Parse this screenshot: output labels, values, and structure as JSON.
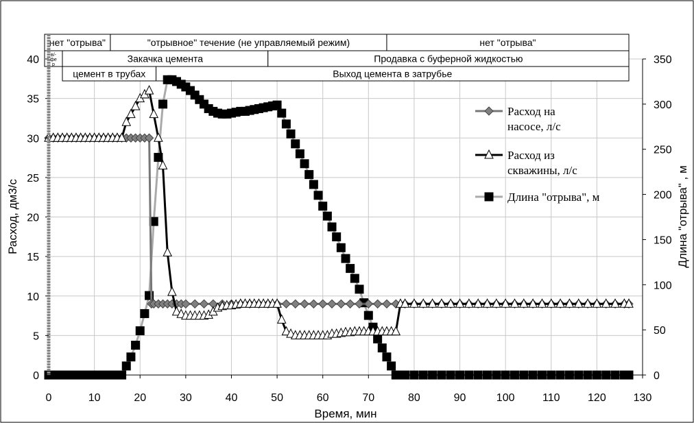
{
  "chart_data": {
    "type": "line",
    "title": "",
    "xlabel": "Время, мин",
    "ylabel_left": "Расход, дм3/с",
    "ylabel_right": "Длина \"отрыва\" , м",
    "xlim": [
      0,
      130
    ],
    "ylim_left": [
      0,
      40
    ],
    "ylim_right": [
      0,
      350
    ],
    "x_ticks": [
      "0",
      "10",
      "20",
      "30",
      "40",
      "50",
      "60",
      "70",
      "80",
      "90",
      "100",
      "110",
      "120",
      "130"
    ],
    "y_left_ticks": [
      "0",
      "5",
      "10",
      "15",
      "20",
      "25",
      "30",
      "35",
      "40"
    ],
    "y_right_ticks": [
      "0",
      "50",
      "100",
      "150",
      "200",
      "250",
      "300",
      "350"
    ],
    "grid": true,
    "legend_position": "right",
    "phase_rows": [
      {
        "segments": [
          {
            "label": "нет \"отрыва\"",
            "x_start": 0,
            "x_end": 13.5
          },
          {
            "label": "\"отрывное\" течение (не управляемый режим)",
            "x_start": 13.5,
            "x_end": 74
          },
          {
            "label": "нет \"отрыва\"",
            "x_start": 74,
            "x_end": 127
          }
        ]
      },
      {
        "segments": [
          {
            "label": "в/-\nфе\nр",
            "x_start": 0,
            "x_end": 3
          },
          {
            "label": "Закачка цемента",
            "x_start": 3,
            "x_end": 48
          },
          {
            "label": "Продавка с буферной жидкостью",
            "x_start": 48,
            "x_end": 127
          }
        ]
      },
      {
        "segments": [
          {
            "label": "цемент в трубах",
            "x_start": 3,
            "x_end": 23.5
          },
          {
            "label": "Выход цемента в затрубье",
            "x_start": 23.5,
            "x_end": 127
          }
        ]
      }
    ],
    "series": [
      {
        "name": "Расход на насосе, л/с",
        "legend_lines": [
          "Расход на",
          "насосе, л/с"
        ],
        "axis": "left",
        "marker": "diamond",
        "color": "#777777",
        "marker_fill": "#808080",
        "points": [
          [
            0,
            30
          ],
          [
            1,
            30
          ],
          [
            2,
            30
          ],
          [
            3,
            30
          ],
          [
            4,
            30
          ],
          [
            5,
            30
          ],
          [
            6,
            30
          ],
          [
            7,
            30
          ],
          [
            8,
            30
          ],
          [
            9,
            30
          ],
          [
            10,
            30
          ],
          [
            11,
            30
          ],
          [
            12,
            30
          ],
          [
            13,
            30
          ],
          [
            14,
            30
          ],
          [
            15,
            30
          ],
          [
            16,
            30
          ],
          [
            17,
            30
          ],
          [
            18,
            30
          ],
          [
            19,
            30
          ],
          [
            20,
            30
          ],
          [
            21,
            30
          ],
          [
            22,
            30
          ],
          [
            22.5,
            9
          ],
          [
            23,
            9
          ],
          [
            24,
            9
          ],
          [
            25,
            9
          ],
          [
            26,
            9
          ],
          [
            27,
            9
          ],
          [
            28,
            9
          ],
          [
            29,
            9
          ],
          [
            30,
            9
          ],
          [
            32,
            9
          ],
          [
            34,
            9
          ],
          [
            36,
            9
          ],
          [
            38,
            9
          ],
          [
            40,
            9
          ],
          [
            42,
            9
          ],
          [
            44,
            9
          ],
          [
            46,
            9
          ],
          [
            48,
            9
          ],
          [
            50,
            9
          ],
          [
            52,
            9
          ],
          [
            54,
            9
          ],
          [
            56,
            9
          ],
          [
            58,
            9
          ],
          [
            60,
            9
          ],
          [
            62,
            9
          ],
          [
            64,
            9
          ],
          [
            66,
            9
          ],
          [
            68,
            9
          ],
          [
            70,
            9
          ],
          [
            72,
            9
          ],
          [
            74,
            9
          ],
          [
            76,
            9
          ],
          [
            78,
            9
          ],
          [
            80,
            9
          ],
          [
            82,
            9
          ],
          [
            84,
            9
          ],
          [
            86,
            9
          ],
          [
            88,
            9
          ],
          [
            90,
            9
          ],
          [
            92,
            9
          ],
          [
            94,
            9
          ],
          [
            96,
            9
          ],
          [
            98,
            9
          ],
          [
            100,
            9
          ],
          [
            102,
            9
          ],
          [
            104,
            9
          ],
          [
            106,
            9
          ],
          [
            108,
            9
          ],
          [
            110,
            9
          ],
          [
            112,
            9
          ],
          [
            114,
            9
          ],
          [
            116,
            9
          ],
          [
            118,
            9
          ],
          [
            120,
            9
          ],
          [
            122,
            9
          ],
          [
            124,
            9
          ],
          [
            126,
            9
          ],
          [
            127,
            9
          ]
        ]
      },
      {
        "name": "Расход из скважины, л/с",
        "legend_lines": [
          "Расход из",
          "скважины, л/с"
        ],
        "axis": "left",
        "marker": "triangle",
        "color": "#000000",
        "marker_fill": "#ffffff",
        "points": [
          [
            0,
            30
          ],
          [
            1,
            30
          ],
          [
            2,
            30
          ],
          [
            3,
            30
          ],
          [
            4,
            30
          ],
          [
            5,
            30
          ],
          [
            6,
            30
          ],
          [
            7,
            30
          ],
          [
            8,
            30
          ],
          [
            9,
            30
          ],
          [
            10,
            30
          ],
          [
            11,
            30
          ],
          [
            12,
            30
          ],
          [
            13,
            30
          ],
          [
            14,
            30
          ],
          [
            15,
            30
          ],
          [
            16,
            30
          ],
          [
            17,
            32
          ],
          [
            18,
            33
          ],
          [
            19,
            34
          ],
          [
            20,
            35
          ],
          [
            21,
            35.5
          ],
          [
            22,
            36
          ],
          [
            23,
            33
          ],
          [
            24,
            30
          ],
          [
            25,
            26.5
          ],
          [
            26,
            15.5
          ],
          [
            27,
            10.5
          ],
          [
            28,
            8
          ],
          [
            29,
            7.7
          ],
          [
            30,
            7.5
          ],
          [
            31,
            7.5
          ],
          [
            32,
            7.5
          ],
          [
            33,
            7.5
          ],
          [
            34,
            7.5
          ],
          [
            35,
            7.6
          ],
          [
            36,
            8
          ],
          [
            37,
            8.5
          ],
          [
            38,
            8.7
          ],
          [
            39,
            8.8
          ],
          [
            40,
            8.8
          ],
          [
            41,
            8.9
          ],
          [
            42,
            9
          ],
          [
            43,
            9
          ],
          [
            44,
            9
          ],
          [
            45,
            9
          ],
          [
            46,
            9
          ],
          [
            47,
            9
          ],
          [
            48,
            9
          ],
          [
            49,
            9
          ],
          [
            50,
            9
          ],
          [
            51,
            7
          ],
          [
            52,
            5.5
          ],
          [
            53,
            5.2
          ],
          [
            54,
            5
          ],
          [
            55,
            5
          ],
          [
            56,
            5
          ],
          [
            57,
            5
          ],
          [
            58,
            5
          ],
          [
            59,
            5
          ],
          [
            60,
            5
          ],
          [
            61,
            5
          ],
          [
            62,
            5.2
          ],
          [
            63,
            5.2
          ],
          [
            64,
            5.3
          ],
          [
            65,
            5.4
          ],
          [
            66,
            5.4
          ],
          [
            67,
            5.5
          ],
          [
            68,
            5.5
          ],
          [
            69,
            5.5
          ],
          [
            70,
            5.5
          ],
          [
            71,
            5.5
          ],
          [
            72,
            5.5
          ],
          [
            73,
            5.5
          ],
          [
            74,
            5.5
          ],
          [
            75,
            5.5
          ],
          [
            76,
            5.5
          ],
          [
            77,
            9
          ],
          [
            78,
            9
          ],
          [
            80,
            9
          ],
          [
            82,
            9
          ],
          [
            84,
            9
          ],
          [
            86,
            9
          ],
          [
            88,
            9
          ],
          [
            90,
            9
          ],
          [
            92,
            9
          ],
          [
            94,
            9
          ],
          [
            96,
            9
          ],
          [
            98,
            9
          ],
          [
            100,
            9
          ],
          [
            102,
            9
          ],
          [
            104,
            9
          ],
          [
            106,
            9
          ],
          [
            108,
            9
          ],
          [
            110,
            9
          ],
          [
            112,
            9
          ],
          [
            114,
            9
          ],
          [
            116,
            9
          ],
          [
            118,
            9
          ],
          [
            120,
            9
          ],
          [
            122,
            9
          ],
          [
            124,
            9
          ],
          [
            126,
            9
          ],
          [
            127,
            9
          ]
        ]
      },
      {
        "name": "Длина \"отрыва\", м",
        "legend_lines": [
          "Длина \"отрыва\", м"
        ],
        "axis": "right",
        "marker": "square",
        "color": "#aaaaaa",
        "marker_fill": "#000000",
        "points": [
          [
            0,
            0
          ],
          [
            1,
            0
          ],
          [
            2,
            0
          ],
          [
            3,
            0
          ],
          [
            4,
            0
          ],
          [
            5,
            0
          ],
          [
            6,
            0
          ],
          [
            7,
            0
          ],
          [
            8,
            0
          ],
          [
            9,
            0
          ],
          [
            10,
            0
          ],
          [
            11,
            0
          ],
          [
            12,
            0
          ],
          [
            13,
            0
          ],
          [
            14,
            0
          ],
          [
            15,
            0
          ],
          [
            16,
            0
          ],
          [
            17,
            10
          ],
          [
            18,
            20
          ],
          [
            19,
            33
          ],
          [
            20,
            49
          ],
          [
            21,
            68
          ],
          [
            22,
            88
          ],
          [
            23,
            170
          ],
          [
            24,
            241
          ],
          [
            25,
            300
          ],
          [
            26,
            327
          ],
          [
            27,
            327
          ],
          [
            28,
            325
          ],
          [
            29,
            322
          ],
          [
            30,
            319
          ],
          [
            31,
            315
          ],
          [
            32,
            310
          ],
          [
            33,
            305
          ],
          [
            34,
            300
          ],
          [
            35,
            295
          ],
          [
            36,
            292
          ],
          [
            37,
            290
          ],
          [
            38,
            289
          ],
          [
            39,
            289
          ],
          [
            40,
            290
          ],
          [
            41,
            291
          ],
          [
            42,
            292
          ],
          [
            43,
            292
          ],
          [
            44,
            293
          ],
          [
            45,
            294
          ],
          [
            46,
            295
          ],
          [
            47,
            296
          ],
          [
            48,
            297
          ],
          [
            49,
            298
          ],
          [
            50,
            299
          ],
          [
            51,
            290
          ],
          [
            52,
            278
          ],
          [
            53,
            267
          ],
          [
            54,
            256
          ],
          [
            55,
            245
          ],
          [
            56,
            234
          ],
          [
            57,
            222
          ],
          [
            58,
            211
          ],
          [
            59,
            199
          ],
          [
            60,
            187
          ],
          [
            61,
            176
          ],
          [
            62,
            164
          ],
          [
            63,
            153
          ],
          [
            64,
            141
          ],
          [
            65,
            129
          ],
          [
            66,
            118
          ],
          [
            67,
            107
          ],
          [
            68,
            95
          ],
          [
            69,
            80
          ],
          [
            70,
            66
          ],
          [
            71,
            53
          ],
          [
            72,
            40
          ],
          [
            73,
            30
          ],
          [
            74,
            20
          ],
          [
            75,
            10
          ],
          [
            76,
            0
          ],
          [
            77,
            0
          ],
          [
            78,
            0
          ],
          [
            80,
            0
          ],
          [
            82,
            0
          ],
          [
            84,
            0
          ],
          [
            86,
            0
          ],
          [
            88,
            0
          ],
          [
            90,
            0
          ],
          [
            92,
            0
          ],
          [
            94,
            0
          ],
          [
            96,
            0
          ],
          [
            98,
            0
          ],
          [
            100,
            0
          ],
          [
            102,
            0
          ],
          [
            104,
            0
          ],
          [
            106,
            0
          ],
          [
            108,
            0
          ],
          [
            110,
            0
          ],
          [
            112,
            0
          ],
          [
            114,
            0
          ],
          [
            116,
            0
          ],
          [
            118,
            0
          ],
          [
            120,
            0
          ],
          [
            122,
            0
          ],
          [
            124,
            0
          ],
          [
            126,
            0
          ],
          [
            127,
            0
          ]
        ]
      }
    ]
  }
}
